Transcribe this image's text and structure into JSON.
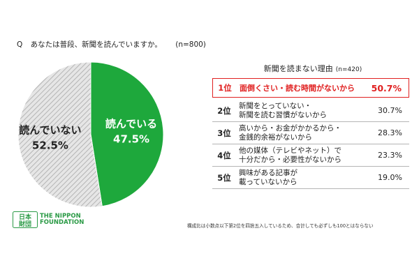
{
  "question": {
    "prefix": "Q",
    "text": "あなたは普段、新聞を読んでいますか。",
    "n": "(n=800)"
  },
  "chart_data": [
    {
      "type": "pie",
      "slices": [
        {
          "label": "読んでいる",
          "value": 47.5,
          "display": "47.5%",
          "color": "#1ea83c"
        },
        {
          "label": "読んでいない",
          "value": 52.5,
          "display": "52.5%",
          "color": "#d9d9d9"
        }
      ]
    },
    {
      "type": "table",
      "title": "新聞を読まない理由",
      "n": "(n=420)",
      "rows": [
        {
          "rank": "1位",
          "lines": [
            "面倒くさい・読む時間がないから"
          ],
          "value": "50.7%"
        },
        {
          "rank": "2位",
          "lines": [
            "新聞をとっていない・",
            "新聞を読む習慣がないから"
          ],
          "value": "30.7%"
        },
        {
          "rank": "3位",
          "lines": [
            "高いから・お金がかかるから・",
            "金銭的余裕がないから"
          ],
          "value": "28.3%"
        },
        {
          "rank": "4位",
          "lines": [
            "他の媒体（テレビやネット）で",
            "十分だから・必要性がないから"
          ],
          "value": "23.3%"
        },
        {
          "rank": "5位",
          "lines": [
            "興味がある記事が",
            "載っていないから"
          ],
          "value": "19.0%"
        }
      ]
    }
  ],
  "logo": {
    "kanji_top": "日本",
    "kanji_bottom": "財団",
    "line1": "THE NIPPON",
    "line2": "FOUNDATION",
    "color": "#2a9a45"
  },
  "footnote": "構成比は小数点以下第2位を四捨五入しているため、合計しても必ずしも100とはならない"
}
